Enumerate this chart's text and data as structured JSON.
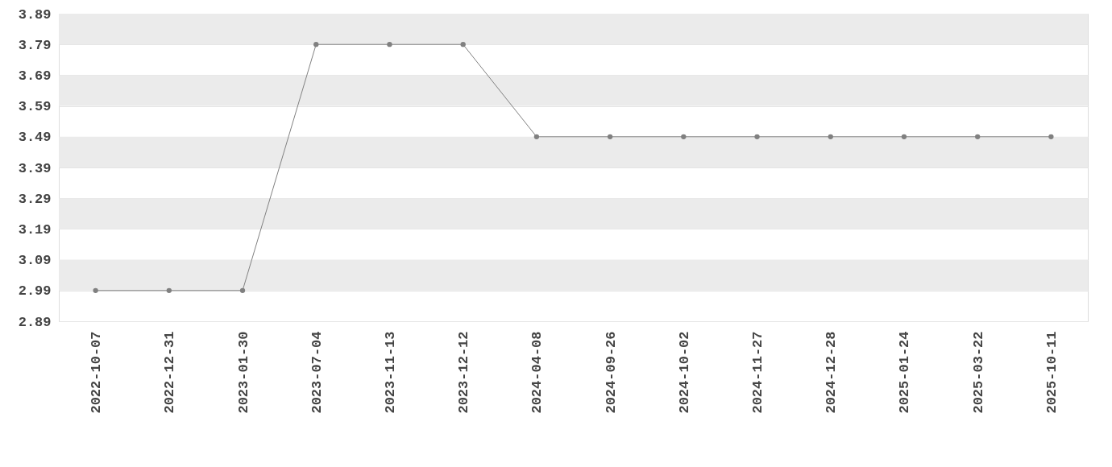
{
  "chart_data": {
    "type": "line",
    "categories": [
      "2022-10-07",
      "2022-12-31",
      "2023-01-30",
      "2023-07-04",
      "2023-11-13",
      "2023-12-12",
      "2024-04-08",
      "2024-09-26",
      "2024-10-02",
      "2024-11-27",
      "2024-12-28",
      "2025-01-24",
      "2025-03-22",
      "2025-10-11"
    ],
    "series": [
      {
        "color": "#808080",
        "values": [
          2.99,
          2.99,
          2.99,
          3.79,
          3.79,
          3.79,
          3.49,
          3.49,
          3.49,
          3.49,
          3.49,
          3.49,
          3.49,
          3.49
        ]
      }
    ],
    "ylim": [
      2.89,
      3.89
    ],
    "yticks": [
      2.89,
      2.99,
      3.09,
      3.19,
      3.29,
      3.39,
      3.49,
      3.59,
      3.69,
      3.79,
      3.89
    ],
    "grid": "y",
    "marker": "circle",
    "line_style": "solid"
  }
}
